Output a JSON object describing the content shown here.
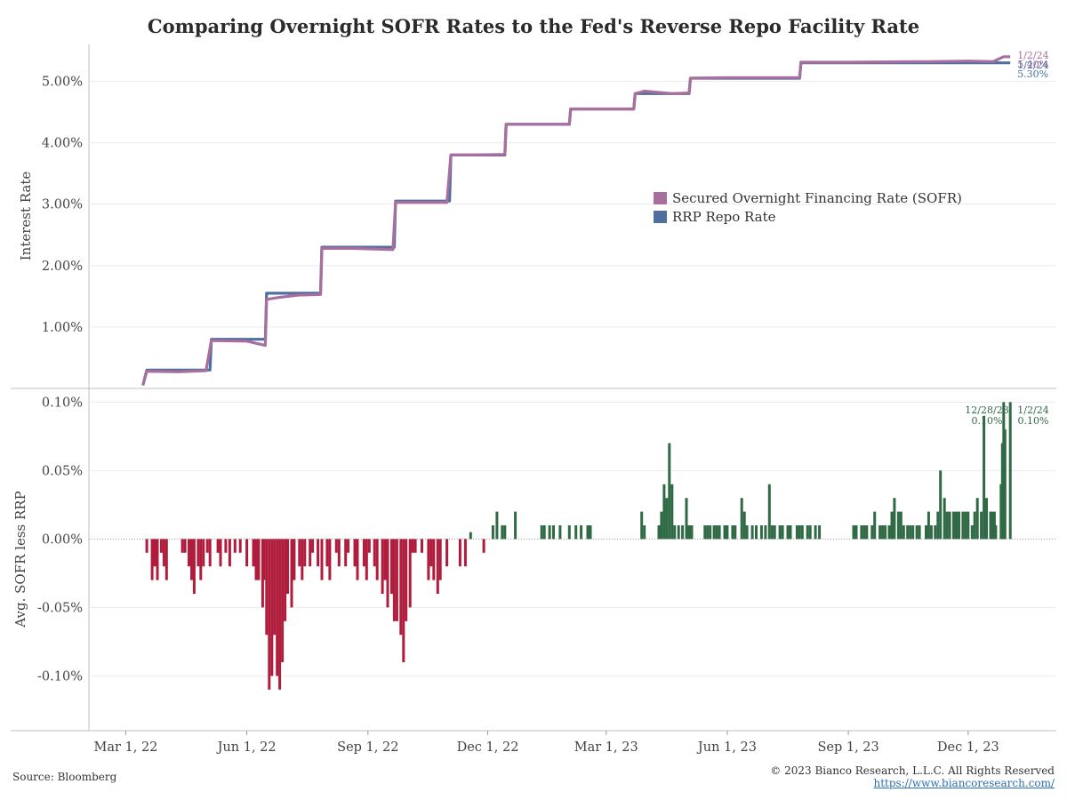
{
  "chart_data": [
    {
      "type": "line",
      "title": "Comparing Overnight SOFR Rates to the Fed's Reverse Repo Facility Rate",
      "ylabel": "Interest Rate",
      "ylim": [
        0,
        5.6
      ],
      "y_tick_labels": [
        "1.00%",
        "2.00%",
        "3.00%",
        "4.00%",
        "5.00%"
      ],
      "y_tick_values": [
        1,
        2,
        3,
        4,
        5
      ],
      "legend_placement": "center-right",
      "series": [
        {
          "name": "Secured Overnight Financing Rate (SOFR)",
          "color": "#a86f9e",
          "points": [
            [
              "2022-03-14",
              0.05
            ],
            [
              "2022-03-17",
              0.28
            ],
            [
              "2022-04-10",
              0.27
            ],
            [
              "2022-05-01",
              0.29
            ],
            [
              "2022-05-05",
              0.78
            ],
            [
              "2022-06-01",
              0.77
            ],
            [
              "2022-06-15",
              0.7
            ],
            [
              "2022-06-16",
              1.45
            ],
            [
              "2022-06-25",
              1.48
            ],
            [
              "2022-07-10",
              1.52
            ],
            [
              "2022-07-27",
              1.53
            ],
            [
              "2022-07-28",
              2.28
            ],
            [
              "2022-08-20",
              2.28
            ],
            [
              "2022-09-20",
              2.26
            ],
            [
              "2022-09-22",
              3.03
            ],
            [
              "2022-10-10",
              3.03
            ],
            [
              "2022-10-31",
              3.03
            ],
            [
              "2022-11-03",
              3.8
            ],
            [
              "2022-11-20",
              3.8
            ],
            [
              "2022-12-14",
              3.81
            ],
            [
              "2022-12-15",
              4.3
            ],
            [
              "2023-01-10",
              4.3
            ],
            [
              "2023-02-01",
              4.3
            ],
            [
              "2023-02-02",
              4.55
            ],
            [
              "2023-03-01",
              4.55
            ],
            [
              "2023-03-22",
              4.55
            ],
            [
              "2023-03-23",
              4.8
            ],
            [
              "2023-03-30",
              4.84
            ],
            [
              "2023-04-20",
              4.8
            ],
            [
              "2023-05-03",
              4.81
            ],
            [
              "2023-05-04",
              5.05
            ],
            [
              "2023-06-01",
              5.06
            ],
            [
              "2023-07-26",
              5.06
            ],
            [
              "2023-07-27",
              5.31
            ],
            [
              "2023-09-01",
              5.31
            ],
            [
              "2023-11-01",
              5.32
            ],
            [
              "2023-12-01",
              5.33
            ],
            [
              "2023-12-20",
              5.32
            ],
            [
              "2023-12-28",
              5.4
            ],
            [
              "2024-01-02",
              5.4
            ]
          ]
        },
        {
          "name": "RRP Repo Rate",
          "color": "#4e6fa0",
          "points": [
            [
              "2022-03-14",
              0.05
            ],
            [
              "2022-03-17",
              0.3
            ],
            [
              "2022-05-04",
              0.3
            ],
            [
              "2022-05-05",
              0.8
            ],
            [
              "2022-06-15",
              0.8
            ],
            [
              "2022-06-16",
              1.55
            ],
            [
              "2022-07-27",
              1.55
            ],
            [
              "2022-07-28",
              2.3
            ],
            [
              "2022-09-21",
              2.3
            ],
            [
              "2022-09-22",
              3.05
            ],
            [
              "2022-11-02",
              3.05
            ],
            [
              "2022-11-03",
              3.8
            ],
            [
              "2022-12-14",
              3.8
            ],
            [
              "2022-12-15",
              4.3
            ],
            [
              "2023-02-01",
              4.3
            ],
            [
              "2023-02-02",
              4.55
            ],
            [
              "2023-03-22",
              4.55
            ],
            [
              "2023-03-23",
              4.8
            ],
            [
              "2023-05-03",
              4.8
            ],
            [
              "2023-05-04",
              5.05
            ],
            [
              "2023-07-26",
              5.05
            ],
            [
              "2023-07-27",
              5.3
            ],
            [
              "2024-01-02",
              5.3
            ]
          ]
        }
      ],
      "annotations": [
        {
          "date": "2024-01-02",
          "value": 5.4,
          "label1": "1/2/24",
          "label2": "5.40%",
          "color": "#a86f9e"
        },
        {
          "date": "2024-01-02",
          "value": 5.3,
          "label1": "1/2/24",
          "label2": "5.30%",
          "color": "#4e6fa0"
        }
      ]
    },
    {
      "type": "bar",
      "ylabel": "Avg. SOFR less RRP",
      "ylim": [
        -0.14,
        0.11
      ],
      "y_tick_labels": [
        "-0.10%",
        "-0.05%",
        "0.00%",
        "0.05%",
        "0.10%"
      ],
      "y_tick_values": [
        -0.1,
        -0.05,
        0,
        0.05,
        0.1
      ],
      "positive_color": "#2f6a45",
      "negative_color": "#b01c3c",
      "x_tick_labels": [
        "Mar 1, 22",
        "Jun 1, 22",
        "Sep 1, 22",
        "Dec 1, 22",
        "Mar 1, 23",
        "Jun 1, 23",
        "Sep 1, 23",
        "Dec 1, 23"
      ],
      "x_tick_dates": [
        "2022-03-01",
        "2022-06-01",
        "2022-09-01",
        "2022-12-01",
        "2023-03-01",
        "2023-06-01",
        "2023-09-01",
        "2023-12-01"
      ],
      "x_range": [
        "2022-02-01",
        "2024-02-06"
      ],
      "bars": [
        [
          "2022-03-17",
          -0.01
        ],
        [
          "2022-03-21",
          -0.03
        ],
        [
          "2022-03-23",
          -0.02
        ],
        [
          "2022-03-25",
          -0.03
        ],
        [
          "2022-03-28",
          -0.01
        ],
        [
          "2022-03-30",
          -0.02
        ],
        [
          "2022-04-01",
          -0.03
        ],
        [
          "2022-04-13",
          -0.01
        ],
        [
          "2022-04-15",
          -0.01
        ],
        [
          "2022-04-18",
          -0.02
        ],
        [
          "2022-04-20",
          -0.03
        ],
        [
          "2022-04-22",
          -0.04
        ],
        [
          "2022-04-25",
          -0.02
        ],
        [
          "2022-04-27",
          -0.03
        ],
        [
          "2022-04-29",
          -0.02
        ],
        [
          "2022-05-02",
          -0.01
        ],
        [
          "2022-05-04",
          -0.02
        ],
        [
          "2022-05-10",
          -0.01
        ],
        [
          "2022-05-12",
          -0.02
        ],
        [
          "2022-05-16",
          -0.01
        ],
        [
          "2022-05-19",
          -0.02
        ],
        [
          "2022-05-23",
          -0.01
        ],
        [
          "2022-05-27",
          -0.01
        ],
        [
          "2022-06-01",
          -0.02
        ],
        [
          "2022-06-06",
          -0.02
        ],
        [
          "2022-06-08",
          -0.03
        ],
        [
          "2022-06-10",
          -0.03
        ],
        [
          "2022-06-13",
          -0.05
        ],
        [
          "2022-06-14",
          -0.03
        ],
        [
          "2022-06-16",
          -0.07
        ],
        [
          "2022-06-18",
          -0.11
        ],
        [
          "2022-06-20",
          -0.1
        ],
        [
          "2022-06-22",
          -0.07
        ],
        [
          "2022-06-24",
          -0.1
        ],
        [
          "2022-06-26",
          -0.11
        ],
        [
          "2022-06-28",
          -0.09
        ],
        [
          "2022-06-30",
          -0.06
        ],
        [
          "2022-07-02",
          -0.04
        ],
        [
          "2022-07-05",
          -0.05
        ],
        [
          "2022-07-07",
          -0.03
        ],
        [
          "2022-07-11",
          -0.02
        ],
        [
          "2022-07-13",
          -0.03
        ],
        [
          "2022-07-15",
          -0.02
        ],
        [
          "2022-07-19",
          -0.02
        ],
        [
          "2022-07-21",
          -0.01
        ],
        [
          "2022-07-25",
          -0.02
        ],
        [
          "2022-07-28",
          -0.03
        ],
        [
          "2022-08-01",
          -0.02
        ],
        [
          "2022-08-03",
          -0.03
        ],
        [
          "2022-08-08",
          -0.01
        ],
        [
          "2022-08-10",
          -0.02
        ],
        [
          "2022-08-15",
          -0.02
        ],
        [
          "2022-08-17",
          -0.01
        ],
        [
          "2022-08-22",
          -0.02
        ],
        [
          "2022-08-24",
          -0.03
        ],
        [
          "2022-08-29",
          -0.02
        ],
        [
          "2022-08-31",
          -0.03
        ],
        [
          "2022-09-02",
          -0.01
        ],
        [
          "2022-09-06",
          -0.02
        ],
        [
          "2022-09-08",
          -0.03
        ],
        [
          "2022-09-12",
          -0.04
        ],
        [
          "2022-09-14",
          -0.03
        ],
        [
          "2022-09-16",
          -0.05
        ],
        [
          "2022-09-19",
          -0.04
        ],
        [
          "2022-09-21",
          -0.06
        ],
        [
          "2022-09-23",
          -0.06
        ],
        [
          "2022-09-26",
          -0.07
        ],
        [
          "2022-09-28",
          -0.09
        ],
        [
          "2022-09-30",
          -0.06
        ],
        [
          "2022-10-03",
          -0.05
        ],
        [
          "2022-10-05",
          -0.01
        ],
        [
          "2022-10-07",
          -0.01
        ],
        [
          "2022-10-12",
          -0.01
        ],
        [
          "2022-10-17",
          -0.03
        ],
        [
          "2022-10-19",
          -0.02
        ],
        [
          "2022-10-21",
          -0.03
        ],
        [
          "2022-10-24",
          -0.04
        ],
        [
          "2022-10-26",
          -0.03
        ],
        [
          "2022-10-31",
          -0.02
        ],
        [
          "2022-11-10",
          -0.02
        ],
        [
          "2022-11-14",
          -0.02
        ],
        [
          "2022-11-18",
          0.005
        ],
        [
          "2022-11-28",
          -0.01
        ],
        [
          "2022-12-05",
          0.01
        ],
        [
          "2022-12-08",
          0.02
        ],
        [
          "2022-12-12",
          0.01
        ],
        [
          "2022-12-14",
          0.01
        ],
        [
          "2022-12-22",
          0.02
        ],
        [
          "2023-01-11",
          0.01
        ],
        [
          "2023-01-13",
          0.01
        ],
        [
          "2023-01-17",
          0.01
        ],
        [
          "2023-01-20",
          0.01
        ],
        [
          "2023-01-25",
          0.01
        ],
        [
          "2023-02-01",
          0.01
        ],
        [
          "2023-02-06",
          0.01
        ],
        [
          "2023-02-10",
          0.01
        ],
        [
          "2023-02-15",
          0.01
        ],
        [
          "2023-02-17",
          0.01
        ],
        [
          "2023-03-28",
          0.02
        ],
        [
          "2023-03-30",
          0.01
        ],
        [
          "2023-04-10",
          0.01
        ],
        [
          "2023-04-12",
          0.02
        ],
        [
          "2023-04-14",
          0.04
        ],
        [
          "2023-04-16",
          0.03
        ],
        [
          "2023-04-18",
          0.07
        ],
        [
          "2023-04-20",
          0.04
        ],
        [
          "2023-04-22",
          0.01
        ],
        [
          "2023-04-25",
          0.01
        ],
        [
          "2023-04-28",
          0.01
        ],
        [
          "2023-05-01",
          0.03
        ],
        [
          "2023-05-03",
          0.01
        ],
        [
          "2023-05-05",
          0.01
        ],
        [
          "2023-05-15",
          0.01
        ],
        [
          "2023-05-17",
          0.01
        ],
        [
          "2023-05-19",
          0.01
        ],
        [
          "2023-05-22",
          0.01
        ],
        [
          "2023-05-24",
          0.01
        ],
        [
          "2023-05-26",
          0.01
        ],
        [
          "2023-05-30",
          0.01
        ],
        [
          "2023-06-01",
          0.01
        ],
        [
          "2023-06-05",
          0.01
        ],
        [
          "2023-06-07",
          0.01
        ],
        [
          "2023-06-12",
          0.03
        ],
        [
          "2023-06-14",
          0.02
        ],
        [
          "2023-06-16",
          0.01
        ],
        [
          "2023-06-20",
          0.01
        ],
        [
          "2023-06-23",
          0.01
        ],
        [
          "2023-06-27",
          0.01
        ],
        [
          "2023-06-30",
          0.01
        ],
        [
          "2023-07-03",
          0.04
        ],
        [
          "2023-07-05",
          0.01
        ],
        [
          "2023-07-07",
          0.01
        ],
        [
          "2023-07-11",
          0.01
        ],
        [
          "2023-07-13",
          0.01
        ],
        [
          "2023-07-17",
          0.01
        ],
        [
          "2023-07-19",
          0.01
        ],
        [
          "2023-07-24",
          0.01
        ],
        [
          "2023-07-26",
          0.01
        ],
        [
          "2023-07-28",
          0.01
        ],
        [
          "2023-08-01",
          0.01
        ],
        [
          "2023-08-03",
          0.01
        ],
        [
          "2023-08-07",
          0.01
        ],
        [
          "2023-08-10",
          0.01
        ],
        [
          "2023-09-05",
          0.01
        ],
        [
          "2023-09-07",
          0.01
        ],
        [
          "2023-09-11",
          0.01
        ],
        [
          "2023-09-13",
          0.01
        ],
        [
          "2023-09-15",
          0.01
        ],
        [
          "2023-09-19",
          0.01
        ],
        [
          "2023-09-21",
          0.02
        ],
        [
          "2023-09-25",
          0.01
        ],
        [
          "2023-09-27",
          0.01
        ],
        [
          "2023-09-29",
          0.01
        ],
        [
          "2023-10-02",
          0.01
        ],
        [
          "2023-10-04",
          0.02
        ],
        [
          "2023-10-06",
          0.03
        ],
        [
          "2023-10-09",
          0.02
        ],
        [
          "2023-10-11",
          0.02
        ],
        [
          "2023-10-13",
          0.01
        ],
        [
          "2023-10-16",
          0.01
        ],
        [
          "2023-10-18",
          0.01
        ],
        [
          "2023-10-20",
          0.01
        ],
        [
          "2023-10-23",
          0.01
        ],
        [
          "2023-10-25",
          0.01
        ],
        [
          "2023-10-30",
          0.01
        ],
        [
          "2023-11-01",
          0.02
        ],
        [
          "2023-11-03",
          0.01
        ],
        [
          "2023-11-06",
          0.01
        ],
        [
          "2023-11-08",
          0.02
        ],
        [
          "2023-11-10",
          0.05
        ],
        [
          "2023-11-13",
          0.03
        ],
        [
          "2023-11-15",
          0.02
        ],
        [
          "2023-11-17",
          0.02
        ],
        [
          "2023-11-20",
          0.02
        ],
        [
          "2023-11-22",
          0.02
        ],
        [
          "2023-11-24",
          0.02
        ],
        [
          "2023-11-27",
          0.02
        ],
        [
          "2023-11-29",
          0.02
        ],
        [
          "2023-12-01",
          0.02
        ],
        [
          "2023-12-04",
          0.01
        ],
        [
          "2023-12-06",
          0.02
        ],
        [
          "2023-12-08",
          0.03
        ],
        [
          "2023-12-11",
          0.02
        ],
        [
          "2023-12-13",
          0.09
        ],
        [
          "2023-12-15",
          0.03
        ],
        [
          "2023-12-18",
          0.02
        ],
        [
          "2023-12-19",
          0.02
        ],
        [
          "2023-12-20",
          0.01
        ],
        [
          "2023-12-21",
          0.02
        ],
        [
          "2023-12-22",
          0.01
        ],
        [
          "2023-12-26",
          0.04
        ],
        [
          "2023-12-27",
          0.07
        ],
        [
          "2023-12-28",
          0.1
        ],
        [
          "2023-12-29",
          0.08
        ],
        [
          "2024-01-02",
          0.1
        ]
      ],
      "annotations": [
        {
          "date": "2023-12-28",
          "value": 0.1,
          "label1": "12/28/23",
          "label2": "0.10%"
        },
        {
          "date": "2024-01-02",
          "value": 0.1,
          "label1": "1/2/24",
          "label2": "0.10%"
        }
      ]
    }
  ],
  "footer": {
    "source": "Source: Bloomberg",
    "copyright": "© 2023 Bianco Research, L.L.C. All Rights Reserved",
    "url": "https://www.biancoresearch.com/"
  }
}
